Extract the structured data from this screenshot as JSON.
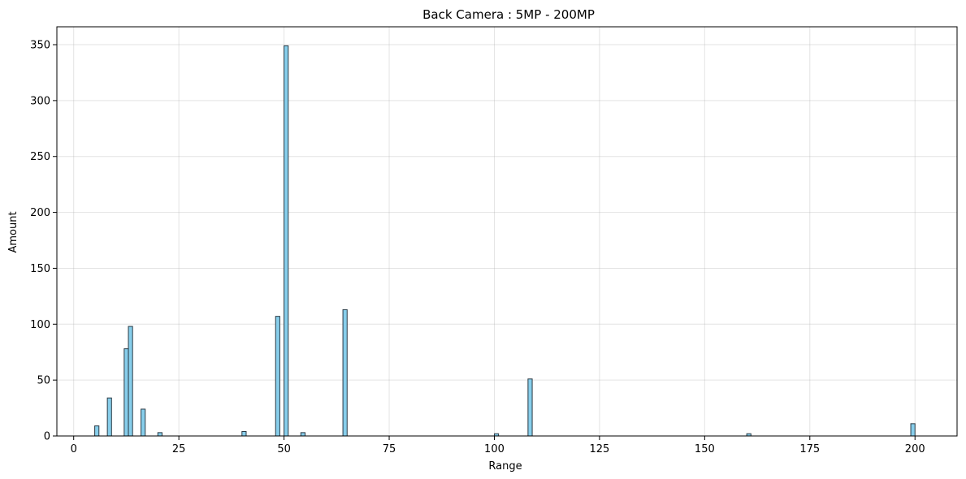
{
  "chart_data": {
    "type": "bar",
    "title": "Back Camera : 5MP - 200MP",
    "xlabel": "Range",
    "ylabel": "Amount",
    "xlim": [
      -4,
      210
    ],
    "ylim": [
      0,
      366
    ],
    "x_ticks": [
      0,
      25,
      50,
      75,
      100,
      125,
      150,
      175,
      200
    ],
    "y_ticks": [
      0,
      50,
      100,
      150,
      200,
      250,
      300,
      350
    ],
    "grid": true,
    "bar_color": "#87CEEB",
    "edge_color": "#2a3a45",
    "bin_width": 1.0,
    "bars": [
      {
        "x": 5.5,
        "value": 9
      },
      {
        "x": 8.5,
        "value": 34
      },
      {
        "x": 12.5,
        "value": 78
      },
      {
        "x": 13.5,
        "value": 98
      },
      {
        "x": 16.5,
        "value": 24
      },
      {
        "x": 20.5,
        "value": 3
      },
      {
        "x": 40.5,
        "value": 4
      },
      {
        "x": 48.5,
        "value": 107
      },
      {
        "x": 50.5,
        "value": 349
      },
      {
        "x": 54.5,
        "value": 3
      },
      {
        "x": 64.5,
        "value": 113
      },
      {
        "x": 100.5,
        "value": 2
      },
      {
        "x": 108.5,
        "value": 51
      },
      {
        "x": 160.5,
        "value": 2
      },
      {
        "x": 199.5,
        "value": 11
      }
    ]
  }
}
